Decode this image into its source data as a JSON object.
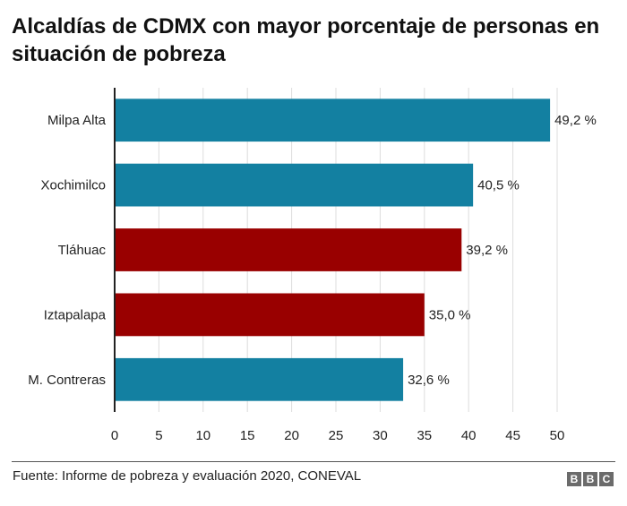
{
  "chart_data": {
    "type": "bar",
    "orientation": "horizontal",
    "title": "Alcaldías de CDMX con mayor porcentaje de personas en situación de pobreza",
    "categories": [
      "Milpa Alta",
      "Xochimilco",
      "Tláhuac",
      "Iztapalapa",
      "M. Contreras"
    ],
    "values": [
      49.2,
      40.5,
      39.2,
      35.0,
      32.6
    ],
    "value_labels": [
      "49,2 %",
      "40,5 %",
      "39,2 %",
      "35,0 %",
      "32,6 %"
    ],
    "bar_colors": [
      "#1380a1",
      "#1380a1",
      "#990000",
      "#990000",
      "#1380a1"
    ],
    "xlabel": "",
    "ylabel": "",
    "xlim": [
      0,
      50
    ],
    "xticks": [
      0,
      5,
      10,
      15,
      20,
      25,
      30,
      35,
      40,
      45,
      50
    ],
    "xtick_labels": [
      "0",
      "5",
      "10",
      "15",
      "20",
      "25",
      "30",
      "35",
      "40",
      "45",
      "50"
    ],
    "grid": true,
    "legend": "none"
  },
  "footer": {
    "source": "Fuente: Informe de pobreza y evaluación 2020, CONEVAL",
    "logo_letters": [
      "B",
      "B",
      "C"
    ]
  },
  "colors": {
    "blue": "#1380a1",
    "red": "#990000",
    "grid": "#dddddd",
    "axis": "#222222"
  }
}
